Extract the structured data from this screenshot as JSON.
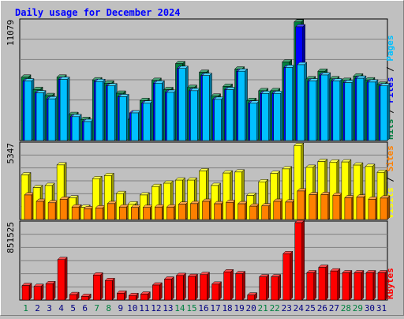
{
  "chart_data": {
    "type": "bar",
    "title": "Daily usage for December 2024",
    "categories": [
      "1",
      "2",
      "3",
      "4",
      "5",
      "6",
      "7",
      "8",
      "9",
      "10",
      "11",
      "12",
      "13",
      "14",
      "15",
      "16",
      "17",
      "18",
      "19",
      "20",
      "21",
      "22",
      "23",
      "24",
      "25",
      "26",
      "27",
      "28",
      "29",
      "30",
      "31"
    ],
    "weekend_days": [
      "1",
      "7",
      "8",
      "14",
      "15",
      "21",
      "22",
      "28",
      "29"
    ],
    "panels": [
      {
        "id": "top",
        "ymax_label": "11079",
        "ylim": [
          0,
          11079
        ],
        "right_labels": [
          {
            "text": "Hits",
            "color": "#008040"
          },
          {
            "text": " / ",
            "color": "#000000"
          },
          {
            "text": "Files",
            "color": "#0000ff"
          },
          {
            "text": " / ",
            "color": "#000000"
          },
          {
            "text": "Pages",
            "color": "#00c0ff"
          }
        ],
        "series": [
          {
            "name": "Hits",
            "color": "#008040",
            "values": [
              5850,
              4720,
              4150,
              5850,
              2400,
              1950,
              5600,
              5300,
              4370,
              1960,
              3700,
              5550,
              4700,
              7100,
              4900,
              6300,
              4100,
              5000,
              6600,
              3700,
              4600,
              4600,
              7250,
              10950,
              5700,
              6400,
              5700,
              5550,
              5950,
              5600,
              5200
            ]
          },
          {
            "name": "Files",
            "color": "#0000ff",
            "values": [
              5500,
              4400,
              3850,
              5650,
              2200,
              1750,
              5450,
              5050,
              4050,
              2550,
              3450,
              5300,
              4450,
              6650,
              4600,
              6000,
              3800,
              4700,
              6400,
              3450,
              4350,
              4350,
              6750,
              10500,
              5500,
              6050,
              5500,
              5350,
              5750,
              5400,
              5050
            ]
          },
          {
            "name": "Pages",
            "color": "#00c0ff",
            "values": [
              5500,
              4400,
              3850,
              5650,
              2200,
              1750,
              5450,
              5050,
              4050,
              2550,
              3450,
              5300,
              4450,
              6650,
              4600,
              6000,
              3800,
              4700,
              6400,
              3450,
              4350,
              4350,
              6750,
              7000,
              5500,
              6050,
              5500,
              5350,
              5750,
              5400,
              5050
            ]
          }
        ]
      },
      {
        "id": "middle",
        "ymax_label": "5347",
        "ylim": [
          0,
          5347
        ],
        "right_labels": [
          {
            "text": "Visits",
            "color": "#ffff00"
          },
          {
            "text": " / ",
            "color": "#000000"
          },
          {
            "text": "Sites",
            "color": "#ff8000"
          }
        ],
        "series": [
          {
            "name": "Visits",
            "color": "#ffff00",
            "values": [
              3150,
              2250,
              2400,
              3850,
              1520,
              860,
              2880,
              3100,
              1830,
              1100,
              1730,
              2330,
              2560,
              2780,
              2780,
              3430,
              2400,
              3280,
              3350,
              1700,
              2660,
              3250,
              3570,
              5220,
              3680,
              4090,
              4050,
              4060,
              3840,
              3740,
              3330
            ]
          },
          {
            "name": "Sites",
            "color": "#ff8000",
            "values": [
              1730,
              1280,
              1180,
              1430,
              880,
              760,
              820,
              1120,
              880,
              850,
              850,
              880,
              880,
              1080,
              1120,
              1280,
              1110,
              1210,
              1110,
              940,
              960,
              1280,
              1230,
              2010,
              1750,
              1760,
              1710,
              1530,
              1580,
              1430,
              1510
            ]
          }
        ]
      },
      {
        "id": "bottom",
        "ymax_label": "851525",
        "ylim": [
          0,
          851525
        ],
        "right_labels": [
          {
            "text": "KBytes",
            "color": "#ff0000"
          }
        ],
        "series": [
          {
            "name": "KBytes",
            "color": "#ff0000",
            "values": [
              160000,
              150000,
              180000,
              445000,
              60000,
              40000,
              275000,
              215000,
              75000,
              50000,
              65000,
              165000,
              230000,
              270000,
              260000,
              280000,
              175000,
              310000,
              290000,
              55000,
              255000,
              255000,
              510000,
              851525,
              300000,
              360000,
              320000,
              300000,
              300000,
              300000,
              300000
            ]
          }
        ]
      }
    ]
  }
}
